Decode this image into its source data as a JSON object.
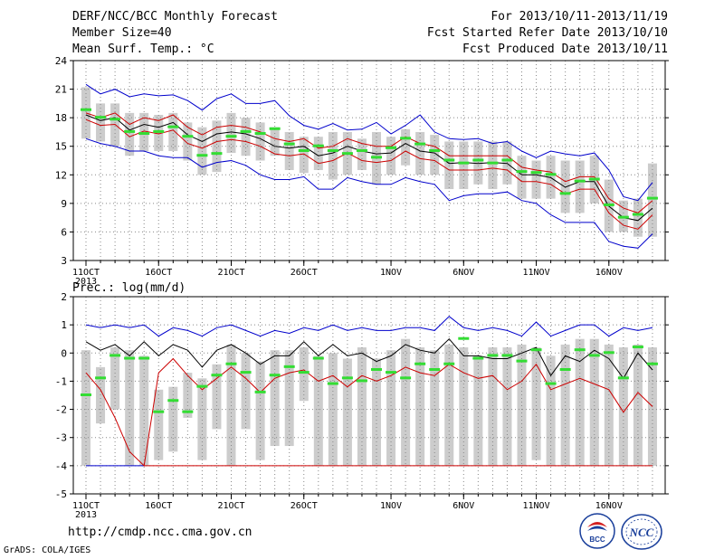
{
  "header": {
    "title": "DERF/NCC/BCC Monthly Forecast",
    "member": "Member Size=40",
    "variable": "Mean Surf. Temp.: °C",
    "period": "For 2013/10/11-2013/11/19",
    "refer": "Fcst Started Refer Date 2013/10/10",
    "produced": "Fcst Produced Date 2013/10/11"
  },
  "footer": {
    "url": "http://cmdp.ncc.cma.gov.cn",
    "credit": "GrADS: COLA/IGES",
    "logo_left": "BCC",
    "logo_right": "NCC"
  },
  "colors": {
    "max": "#0000cc",
    "min": "#0000cc",
    "mean": "#000000",
    "band": "#cc0000",
    "median": "#33dd33",
    "box": "#cccccc"
  },
  "chart_data": [
    {
      "type": "box",
      "panel": "temperature",
      "ylabel": "",
      "ylim": [
        3,
        24
      ],
      "yticks": [
        3,
        6,
        9,
        12,
        15,
        18,
        21,
        24
      ],
      "grid": true,
      "xticks": [
        {
          "day": 0,
          "label": "11OCT",
          "sub": "2013"
        },
        {
          "day": 5,
          "label": "16OCT"
        },
        {
          "day": 10,
          "label": "21OCT"
        },
        {
          "day": 15,
          "label": "26OCT"
        },
        {
          "day": 21,
          "label": "1NOV"
        },
        {
          "day": 26,
          "label": "6NOV"
        },
        {
          "day": 31,
          "label": "11NOV"
        },
        {
          "day": 36,
          "label": "16NOV"
        }
      ],
      "series": {
        "max": [
          21.5,
          20.5,
          21.0,
          20.2,
          20.5,
          20.3,
          20.4,
          19.8,
          18.8,
          20.0,
          20.5,
          19.5,
          19.5,
          19.8,
          18.2,
          17.2,
          16.8,
          17.4,
          16.7,
          16.8,
          17.5,
          16.3,
          17.2,
          18.3,
          16.5,
          15.8,
          15.7,
          15.8,
          15.3,
          15.5,
          14.5,
          13.8,
          14.5,
          14.2,
          14.0,
          14.3,
          12.5,
          9.7,
          9.3,
          11.2
        ],
        "upper": [
          18.5,
          18.0,
          18.5,
          17.3,
          18.0,
          17.7,
          18.3,
          17.0,
          16.2,
          17.0,
          17.2,
          17.0,
          16.5,
          15.8,
          15.5,
          15.8,
          14.8,
          15.0,
          15.8,
          15.3,
          15.0,
          15.0,
          16.0,
          15.3,
          15.0,
          14.0,
          14.0,
          14.0,
          14.0,
          14.0,
          12.8,
          12.5,
          12.3,
          11.3,
          11.8,
          11.8,
          9.5,
          8.5,
          8.0,
          9.3
        ],
        "mean": [
          18.3,
          17.7,
          18.0,
          16.7,
          17.3,
          17.0,
          17.5,
          16.2,
          15.5,
          16.3,
          16.5,
          16.3,
          15.8,
          15.0,
          14.8,
          15.0,
          14.0,
          14.3,
          15.0,
          14.5,
          14.2,
          14.3,
          15.3,
          14.5,
          14.3,
          13.2,
          13.3,
          13.2,
          13.3,
          13.2,
          12.0,
          12.0,
          11.7,
          10.7,
          11.3,
          11.3,
          8.7,
          7.5,
          7.2,
          8.5
        ],
        "lower": [
          17.8,
          17.2,
          17.3,
          16.0,
          16.6,
          16.3,
          16.7,
          15.3,
          14.8,
          15.5,
          15.7,
          15.5,
          15.0,
          14.2,
          14.0,
          14.2,
          13.2,
          13.5,
          14.3,
          13.5,
          13.3,
          13.5,
          14.5,
          13.7,
          13.5,
          12.5,
          12.5,
          12.5,
          12.7,
          12.5,
          11.3,
          11.3,
          11.0,
          10.0,
          10.5,
          10.5,
          8.0,
          6.7,
          6.3,
          7.8
        ],
        "min": [
          15.8,
          15.3,
          15.0,
          14.5,
          14.5,
          14.0,
          13.8,
          13.8,
          12.8,
          13.3,
          13.5,
          13.0,
          12.0,
          11.5,
          11.5,
          11.8,
          10.5,
          10.5,
          11.7,
          11.3,
          11.0,
          11.0,
          11.7,
          11.3,
          11.0,
          9.3,
          9.8,
          10.0,
          10.0,
          10.2,
          9.3,
          9.0,
          7.8,
          7.0,
          7.0,
          7.0,
          5.0,
          4.5,
          4.3,
          5.8
        ],
        "median": [
          18.8,
          18.0,
          17.8,
          16.5,
          16.3,
          16.5,
          17.0,
          16.0,
          14.0,
          14.2,
          16.0,
          16.5,
          16.3,
          16.8,
          15.2,
          14.5,
          15.0,
          14.5,
          14.2,
          14.5,
          13.8,
          14.8,
          15.8,
          15.2,
          14.5,
          13.5,
          13.2,
          13.5,
          13.2,
          13.5,
          12.3,
          12.2,
          12.0,
          10.0,
          11.3,
          11.5,
          8.8,
          7.5,
          7.8,
          9.5
        ],
        "box_hi": [
          21.2,
          19.5,
          19.5,
          18.5,
          18.5,
          18.3,
          18.5,
          17.5,
          17.0,
          17.7,
          18.5,
          18.0,
          17.5,
          17.0,
          16.5,
          16.0,
          16.0,
          16.5,
          16.5,
          15.8,
          16.5,
          16.0,
          16.8,
          16.5,
          16.2,
          15.5,
          15.5,
          15.5,
          15.5,
          15.5,
          14.0,
          13.5,
          14.0,
          13.5,
          13.5,
          14.0,
          11.5,
          9.3,
          9.5,
          13.2
        ],
        "box_lo": [
          15.8,
          15.5,
          15.0,
          14.0,
          14.5,
          14.5,
          14.5,
          13.5,
          12.0,
          12.3,
          14.3,
          14.0,
          13.5,
          14.0,
          12.5,
          12.2,
          12.5,
          11.5,
          12.0,
          12.5,
          11.0,
          12.0,
          13.0,
          12.0,
          12.0,
          10.5,
          10.5,
          11.0,
          10.5,
          11.0,
          9.5,
          9.5,
          9.5,
          8.0,
          8.0,
          9.0,
          6.0,
          6.0,
          5.5,
          5.5
        ]
      }
    },
    {
      "type": "box",
      "panel": "precipitation",
      "title": "Prec.: log(mm/d)",
      "ylim": [
        -5,
        2
      ],
      "yticks": [
        -5,
        -4,
        -3,
        -2,
        -1,
        0,
        1,
        2
      ],
      "grid": true,
      "xticks": [
        {
          "day": 0,
          "label": "11OCT",
          "sub": "2013"
        },
        {
          "day": 5,
          "label": "16OCT"
        },
        {
          "day": 10,
          "label": "21OCT"
        },
        {
          "day": 15,
          "label": "26OCT"
        },
        {
          "day": 21,
          "label": "1NOV"
        },
        {
          "day": 26,
          "label": "6NOV"
        },
        {
          "day": 31,
          "label": "11NOV"
        },
        {
          "day": 36,
          "label": "16NOV"
        }
      ],
      "series": {
        "max": [
          1.0,
          0.9,
          1.0,
          0.9,
          1.0,
          0.6,
          0.9,
          0.8,
          0.6,
          0.9,
          1.0,
          0.8,
          0.6,
          0.8,
          0.7,
          0.9,
          0.8,
          1.0,
          0.8,
          0.9,
          0.8,
          0.8,
          0.9,
          0.9,
          0.8,
          1.3,
          0.9,
          0.8,
          0.9,
          0.8,
          0.6,
          1.1,
          0.6,
          0.8,
          1.0,
          1.0,
          0.6,
          0.9,
          0.8,
          0.9
        ],
        "mean": [
          0.4,
          0.1,
          0.3,
          -0.1,
          0.4,
          -0.1,
          0.3,
          0.1,
          -0.5,
          0.1,
          0.3,
          0.0,
          -0.4,
          -0.1,
          -0.1,
          0.4,
          -0.1,
          0.3,
          -0.1,
          0.0,
          -0.3,
          -0.1,
          0.3,
          0.1,
          0.0,
          0.5,
          -0.1,
          -0.1,
          -0.2,
          -0.2,
          0.0,
          0.2,
          -0.8,
          -0.1,
          -0.3,
          0.1,
          -0.2,
          -0.9,
          0.0,
          -0.6
        ],
        "min": [
          -0.7,
          -1.3,
          -2.3,
          -3.5,
          -4.0,
          -0.7,
          -0.2,
          -0.8,
          -1.3,
          -0.9,
          -0.5,
          -0.9,
          -1.4,
          -0.9,
          -0.7,
          -0.6,
          -1.0,
          -0.8,
          -1.2,
          -0.8,
          -1.0,
          -0.8,
          -0.5,
          -0.7,
          -0.8,
          -0.4,
          -0.7,
          -0.9,
          -0.8,
          -1.3,
          -1.0,
          -0.4,
          -1.3,
          -1.1,
          -0.9,
          -1.1,
          -1.3,
          -2.1,
          -1.4,
          -1.9
        ],
        "median": [
          -1.5,
          -0.9,
          -0.1,
          -0.2,
          -0.2,
          -2.1,
          -1.7,
          -2.1,
          -1.2,
          -0.8,
          -0.4,
          -0.7,
          -1.4,
          -0.8,
          -0.5,
          -0.7,
          -0.2,
          -1.1,
          -0.9,
          -1.0,
          -0.6,
          -0.7,
          -0.9,
          -0.4,
          -0.6,
          -0.4,
          0.5,
          -0.2,
          -0.1,
          -0.1,
          -0.3,
          0.1,
          -1.1,
          -0.6,
          0.1,
          -0.1,
          0.0,
          -0.9,
          0.2,
          -0.4
        ],
        "box_hi": [
          0.1,
          -0.5,
          0.2,
          0.1,
          -0.1,
          -1.3,
          -1.2,
          -0.7,
          -0.9,
          -0.4,
          0.3,
          0.0,
          -0.3,
          0.1,
          0.1,
          0.2,
          -0.1,
          0.0,
          -0.2,
          0.2,
          -0.2,
          0.1,
          0.5,
          0.2,
          0.1,
          0.3,
          0.2,
          -0.1,
          0.2,
          0.2,
          0.3,
          0.2,
          -0.1,
          0.3,
          0.5,
          0.5,
          0.3,
          0.2,
          0.3,
          0.2
        ],
        "box_lo": [
          -4.0,
          -2.5,
          -2.0,
          -4.0,
          -4.0,
          -3.8,
          -3.5,
          -2.3,
          -3.8,
          -2.7,
          -4.0,
          -2.7,
          -3.8,
          -3.3,
          -3.3,
          -1.7,
          -4.0,
          -4.0,
          -4.0,
          -4.0,
          -4.0,
          -4.0,
          -4.0,
          -4.0,
          -4.0,
          -4.0,
          -4.0,
          -4.0,
          -4.0,
          -4.0,
          -4.0,
          -3.8,
          -4.0,
          -4.0,
          -4.0,
          -4.0,
          -4.0,
          -4.0,
          -4.0,
          -4.0
        ]
      }
    }
  ]
}
